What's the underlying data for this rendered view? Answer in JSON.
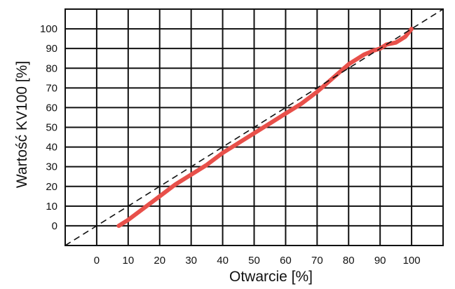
{
  "chart_data": {
    "type": "line",
    "title": "",
    "xlabel": "Otwarcie [%]",
    "ylabel": "Wartość KV100 [%]",
    "xlim": [
      -10,
      110
    ],
    "ylim": [
      -10,
      110
    ],
    "xticks": [
      0,
      10,
      20,
      30,
      40,
      50,
      60,
      70,
      80,
      90,
      100
    ],
    "yticks": [
      0,
      10,
      20,
      30,
      40,
      50,
      60,
      70,
      80,
      90,
      100
    ],
    "grid": true,
    "series": [
      {
        "color": "#e8504a",
        "style": "solid",
        "x": [
          7,
          10,
          15,
          20,
          25,
          30,
          35,
          40,
          45,
          50,
          55,
          60,
          65,
          70,
          75,
          80,
          82,
          85,
          88,
          90,
          92,
          95,
          98,
          100
        ],
        "y": [
          0,
          3,
          9,
          15,
          21,
          26,
          31,
          37,
          42,
          47,
          52,
          57,
          62,
          68,
          75,
          82,
          84,
          87,
          89,
          90,
          92,
          93,
          96,
          100
        ]
      },
      {
        "color": "#111111",
        "style": "dashed",
        "x": [
          -10,
          110
        ],
        "y": [
          -10,
          110
        ]
      }
    ]
  }
}
